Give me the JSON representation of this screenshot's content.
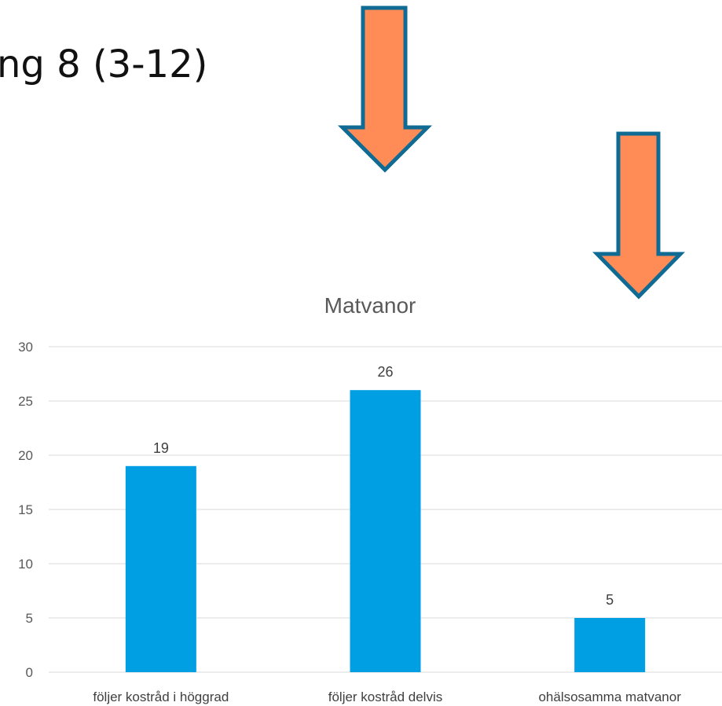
{
  "slide": {
    "title_fragment": "ng 8 (3-12)"
  },
  "chart_data": {
    "type": "bar",
    "title": "Matvanor",
    "categories": [
      "följer kostråd i höggrad",
      "följer kostråd delvis",
      "ohälsosamma matvanor"
    ],
    "values": [
      19,
      26,
      5
    ],
    "data_labels": [
      "19",
      "26",
      "5"
    ],
    "ylim": [
      0,
      30
    ],
    "yticks": [
      0,
      5,
      10,
      15,
      20,
      25,
      30
    ],
    "grid": true,
    "legend": "none",
    "bar_color": "#009fe3"
  },
  "colors": {
    "arrow_fill": "#ff8c57",
    "arrow_stroke": "#0f6b93",
    "grid": "#d9d9d9"
  },
  "arrows": [
    {
      "icon": "arrow-down-icon",
      "points_to": "följer kostråd delvis"
    },
    {
      "icon": "arrow-down-icon",
      "points_to": "ohälsosamma matvanor"
    }
  ]
}
